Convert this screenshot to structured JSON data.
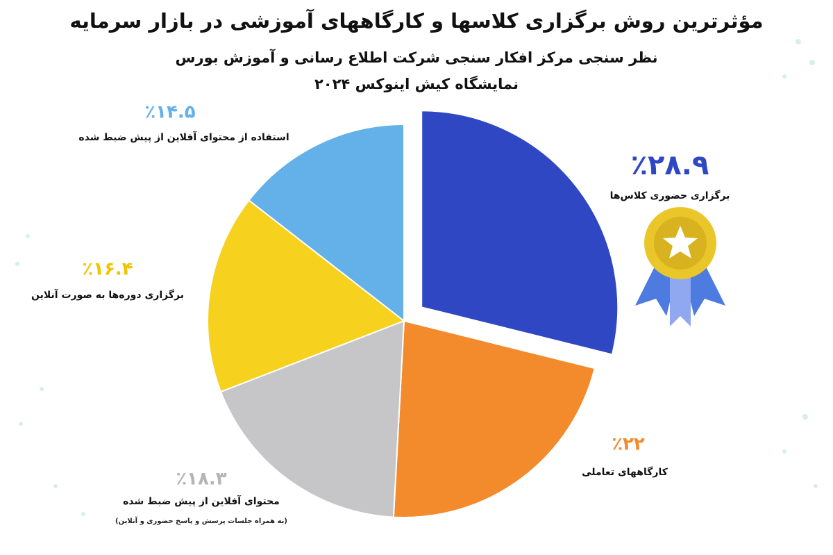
{
  "chart_data": {
    "type": "pie",
    "title": "مؤثرترین روش برگزاری کلاسها و کارگاههای آموزشی در بازار سرمایه",
    "subtitle": [
      "نظر سنجی مرکز افکار سنجی شرکت اطلاع رسانی و آموزش بورس",
      "نمایشگاه کیش اینوکس ۲۰۲۴"
    ],
    "categories": [
      "برگزاری حضوری کلاس‌ها",
      "کارگاههای تعاملی",
      "محتوای آفلاین از پیش ضبط شده",
      "برگزاری دوره‌ها به صورت آنلاین",
      "استفاده از محتوای آفلاین از پیش ضبط شده"
    ],
    "values": [
      28.9,
      22,
      18.3,
      16.4,
      14.5
    ],
    "value_labels": [
      "٪۲۸.۹",
      "٪۲۲",
      "٪۱۸.۳",
      "٪۱۶.۴",
      "٪۱۴.۵"
    ],
    "colors": [
      "#2f47c2",
      "#f38b2c",
      "#c6c6c8",
      "#f6d21e",
      "#63b1e8"
    ],
    "label_colors": [
      "#2f47c2",
      "#f38b2c",
      "#b5b5b8",
      "#f2c400",
      "#63b1e8"
    ],
    "annotation": "(به همراه جلسات پرسش و پاسخ حضوری و آنلاین)"
  }
}
